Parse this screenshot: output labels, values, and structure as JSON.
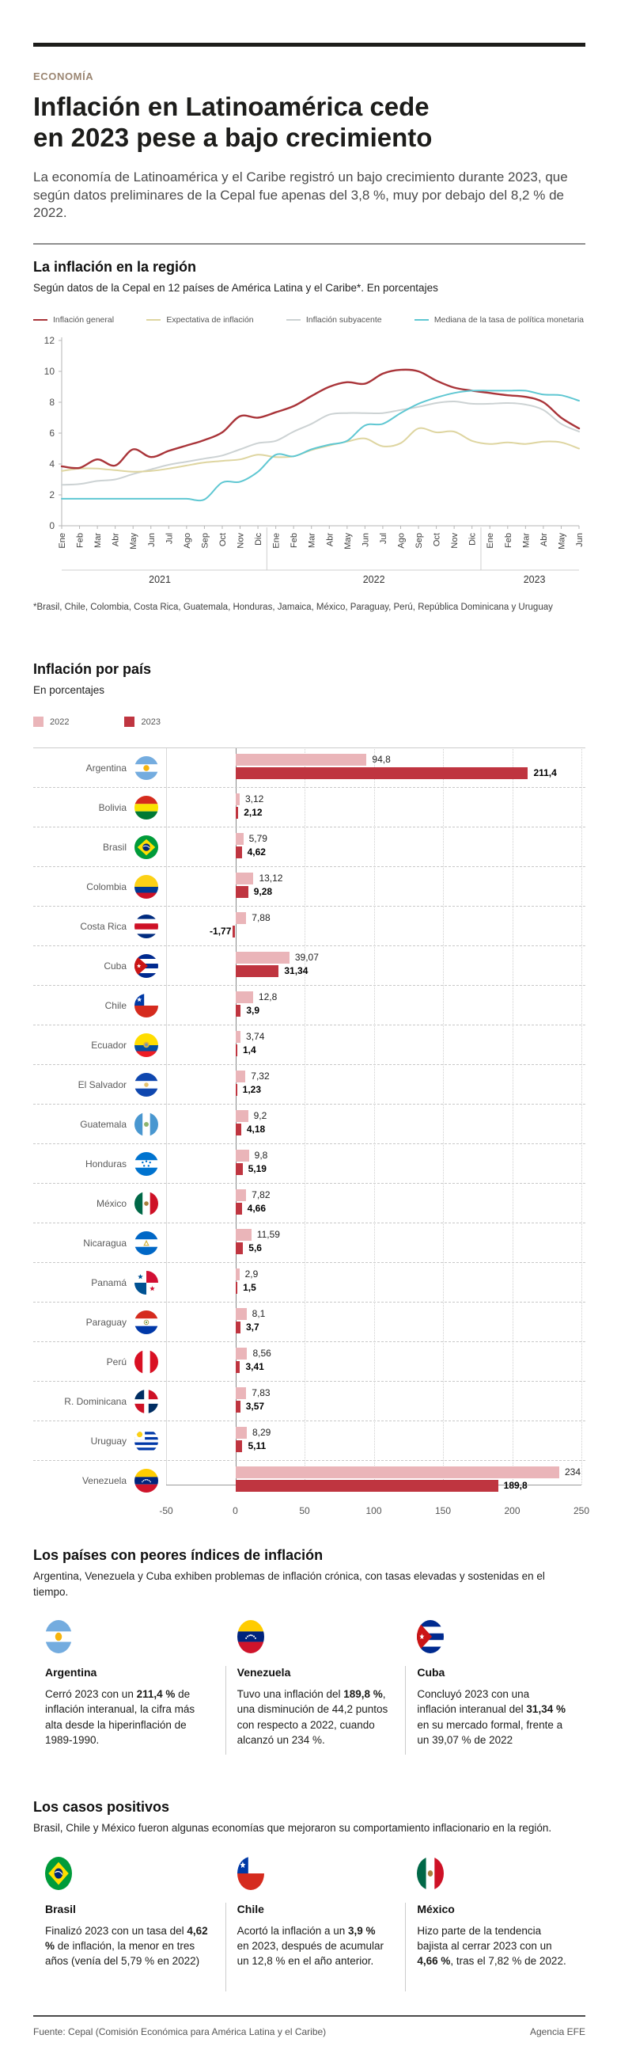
{
  "header": {
    "kicker": "ECONOMÍA",
    "title_line1": "Inflación en Latinoamérica cede",
    "title_line2": "en 2023 pese a bajo crecimiento",
    "intro": "La economía de Latinoamérica y el Caribe registró un bajo crecimiento durante 2023, que según datos preliminares de la Cepal fue apenas del 3,8 %, muy por debajo del 8,2 % de 2022."
  },
  "region_section": {
    "title": "La inflación en la región",
    "subtitle": "Según datos de la Cepal en 12 países de América Latina y el Caribe*. En porcentajes",
    "footnote": "*Brasil, Chile, Colombia, Costa Rica, Guatemala, Honduras, Jamaica, México, Paraguay, Perú, República Dominicana y Uruguay"
  },
  "chart_data": [
    {
      "type": "line",
      "title": "La inflación en la región",
      "xlabel": "",
      "ylabel": "",
      "ylim": [
        0,
        12
      ],
      "yticks": [
        0,
        2,
        4,
        6,
        8,
        10,
        12
      ],
      "grid": false,
      "legend_position": "top",
      "x_months": [
        "Ene",
        "Feb",
        "Mar",
        "Abr",
        "May",
        "Jun",
        "Jul",
        "Ago",
        "Sep",
        "Oct",
        "Nov",
        "Dic",
        "Ene",
        "Feb",
        "Mar",
        "Abr",
        "May",
        "Jun",
        "Jul",
        "Ago",
        "Sep",
        "Oct",
        "Nov",
        "Dic",
        "Ene",
        "Feb",
        "Mar",
        "Abr",
        "May",
        "Jun"
      ],
      "year_groups": [
        {
          "label": "2021",
          "months": 12
        },
        {
          "label": "2022",
          "months": 12
        },
        {
          "label": "2023",
          "months": 6
        }
      ],
      "series": [
        {
          "name": "Inflación general",
          "color": "#a93439",
          "values": [
            3.85,
            3.75,
            4.3,
            3.9,
            4.95,
            4.45,
            4.85,
            5.2,
            5.55,
            6.05,
            7.1,
            7.0,
            7.35,
            7.75,
            8.4,
            9.0,
            9.3,
            9.2,
            9.85,
            10.1,
            10.0,
            9.4,
            8.95,
            8.75,
            8.6,
            8.45,
            8.35,
            8.0,
            7.0,
            6.3
          ]
        },
        {
          "name": "Expectativa de inflación",
          "color": "#ded5a0",
          "values": [
            3.55,
            3.7,
            3.7,
            3.6,
            3.5,
            3.55,
            3.7,
            3.9,
            4.1,
            4.2,
            4.3,
            4.6,
            4.45,
            4.5,
            4.9,
            5.2,
            5.45,
            5.65,
            5.15,
            5.35,
            6.3,
            6.05,
            6.1,
            5.5,
            5.3,
            5.4,
            5.3,
            5.45,
            5.4,
            5.0
          ]
        },
        {
          "name": "Inflación subyacente",
          "color": "#ccd2d3",
          "values": [
            2.65,
            2.7,
            2.9,
            3.0,
            3.35,
            3.65,
            3.95,
            4.15,
            4.35,
            4.55,
            4.95,
            5.35,
            5.5,
            6.1,
            6.6,
            7.2,
            7.3,
            7.3,
            7.3,
            7.5,
            7.7,
            7.95,
            8.05,
            7.9,
            7.9,
            7.95,
            7.85,
            7.5,
            6.6,
            6.1
          ]
        },
        {
          "name": "Mediana de la tasa de política monetaria",
          "color": "#5fc7d2",
          "values": [
            1.75,
            1.75,
            1.75,
            1.75,
            1.75,
            1.75,
            1.75,
            1.75,
            1.7,
            2.8,
            2.85,
            3.5,
            4.6,
            4.5,
            4.95,
            5.25,
            5.5,
            6.5,
            6.6,
            7.3,
            7.9,
            8.3,
            8.6,
            8.75,
            8.75,
            8.75,
            8.75,
            8.5,
            8.45,
            8.1
          ]
        }
      ]
    },
    {
      "type": "bar",
      "orientation": "horizontal",
      "title": "Inflación por país",
      "subtitle": "En porcentajes",
      "xlim": [
        -50,
        250
      ],
      "xticks": [
        "-50",
        "0",
        "50",
        "100",
        "150",
        "200",
        "250"
      ],
      "legend": [
        {
          "label": "2022",
          "color": "#eab5b9"
        },
        {
          "label": "2023",
          "color": "#bf3540"
        }
      ],
      "countries": [
        {
          "name": "Argentina",
          "flag": "ar",
          "v2022": 94.8,
          "v2023": 211.4,
          "l2022": "94,8",
          "l2023": "211,4"
        },
        {
          "name": "Bolivia",
          "flag": "bo",
          "v2022": 3.12,
          "v2023": 2.12,
          "l2022": "3,12",
          "l2023": "2,12"
        },
        {
          "name": "Brasil",
          "flag": "br",
          "v2022": 5.79,
          "v2023": 4.62,
          "l2022": "5,79",
          "l2023": "4,62"
        },
        {
          "name": "Colombia",
          "flag": "co",
          "v2022": 13.12,
          "v2023": 9.28,
          "l2022": "13,12",
          "l2023": "9,28"
        },
        {
          "name": "Costa Rica",
          "flag": "cr",
          "v2022": 7.88,
          "v2023": -1.77,
          "l2022": "7,88",
          "l2023": "-1,77"
        },
        {
          "name": "Cuba",
          "flag": "cu",
          "v2022": 39.07,
          "v2023": 31.34,
          "l2022": "39,07",
          "l2023": "31,34"
        },
        {
          "name": "Chile",
          "flag": "cl",
          "v2022": 12.8,
          "v2023": 3.9,
          "l2022": "12,8",
          "l2023": "3,9"
        },
        {
          "name": "Ecuador",
          "flag": "ec",
          "v2022": 3.74,
          "v2023": 1.4,
          "l2022": "3,74",
          "l2023": "1,4"
        },
        {
          "name": "El Salvador",
          "flag": "sv",
          "v2022": 7.32,
          "v2023": 1.23,
          "l2022": "7,32",
          "l2023": "1,23"
        },
        {
          "name": "Guatemala",
          "flag": "gt",
          "v2022": 9.2,
          "v2023": 4.18,
          "l2022": "9,2",
          "l2023": "4,18"
        },
        {
          "name": "Honduras",
          "flag": "hn",
          "v2022": 9.8,
          "v2023": 5.19,
          "l2022": "9,8",
          "l2023": "5,19"
        },
        {
          "name": "México",
          "flag": "mx",
          "v2022": 7.82,
          "v2023": 4.66,
          "l2022": "7,82",
          "l2023": "4,66"
        },
        {
          "name": "Nicaragua",
          "flag": "ni",
          "v2022": 11.59,
          "v2023": 5.6,
          "l2022": "11,59",
          "l2023": "5,6"
        },
        {
          "name": "Panamá",
          "flag": "pa",
          "v2022": 2.9,
          "v2023": 1.5,
          "l2022": "2,9",
          "l2023": "1,5"
        },
        {
          "name": "Paraguay",
          "flag": "py",
          "v2022": 8.1,
          "v2023": 3.7,
          "l2022": "8,1",
          "l2023": "3,7"
        },
        {
          "name": "Perú",
          "flag": "pe",
          "v2022": 8.56,
          "v2023": 3.41,
          "l2022": "8,56",
          "l2023": "3,41"
        },
        {
          "name": "R. Dominicana",
          "flag": "do",
          "v2022": 7.83,
          "v2023": 3.57,
          "l2022": "7,83",
          "l2023": "3,57"
        },
        {
          "name": "Uruguay",
          "flag": "uy",
          "v2022": 8.29,
          "v2023": 5.11,
          "l2022": "8,29",
          "l2023": "5,11"
        },
        {
          "name": "Venezuela",
          "flag": "ve",
          "v2022": 234,
          "v2023": 189.8,
          "l2022": "234",
          "l2023": "189,8"
        }
      ]
    }
  ],
  "worst_section": {
    "title": "Los países con peores índices de inflación",
    "subtitle": "Argentina, Venezuela y Cuba exhiben problemas de inflación crónica, con tasas elevadas y sostenidas en el tiempo.",
    "cards": [
      {
        "country": "Argentina",
        "flag": "ar",
        "body": [
          {
            "t": "Cerró 2023 con un ",
            "b": false
          },
          {
            "t": "211,4 %",
            "b": true
          },
          {
            "t": " de inflación interanual, la cifra más alta desde la hiperinflación de 1989-1990.",
            "b": false
          }
        ]
      },
      {
        "country": "Venezuela",
        "flag": "ve",
        "body": [
          {
            "t": "Tuvo una inflación del ",
            "b": false
          },
          {
            "t": "189,8 %",
            "b": true
          },
          {
            "t": ", una disminución de 44,2 puntos con respecto a 2022, cuando alcanzó un 234 %.",
            "b": false
          }
        ]
      },
      {
        "country": "Cuba",
        "flag": "cu",
        "body": [
          {
            "t": "Concluyó 2023 con una inflación interanual del ",
            "b": false
          },
          {
            "t": "31,34 %",
            "b": true
          },
          {
            "t": " en su mercado formal, frente a un 39,07 % de 2022",
            "b": false
          }
        ]
      }
    ]
  },
  "positive_section": {
    "title": "Los casos positivos",
    "subtitle": "Brasil, Chile y México fueron algunas economías que mejoraron su comportamiento inflacionario en la región.",
    "cards": [
      {
        "country": "Brasil",
        "flag": "br",
        "body": [
          {
            "t": "Finalizó 2023 con un tasa del ",
            "b": false
          },
          {
            "t": "4,62 %",
            "b": true
          },
          {
            "t": " de inflación, la menor en tres años (venía del 5,79 % en 2022)",
            "b": false
          }
        ]
      },
      {
        "country": "Chile",
        "flag": "cl",
        "body": [
          {
            "t": "Acortó la inflación a un ",
            "b": false
          },
          {
            "t": "3,9 %",
            "b": true
          },
          {
            "t": " en 2023, después de acumular un 12,8 % en el año anterior.",
            "b": false
          }
        ]
      },
      {
        "country": "México",
        "flag": "mx",
        "body": [
          {
            "t": "Hizo parte de la tendencia bajista al cerrar 2023 con un ",
            "b": false
          },
          {
            "t": "4,66 %",
            "b": true
          },
          {
            "t": ", tras el 7,82 % de 2022.",
            "b": false
          }
        ]
      }
    ]
  },
  "footer": {
    "source": "Fuente: Cepal (Comisión Económica para América Latina y el Caribe)",
    "credit": "Agencia EFE"
  }
}
